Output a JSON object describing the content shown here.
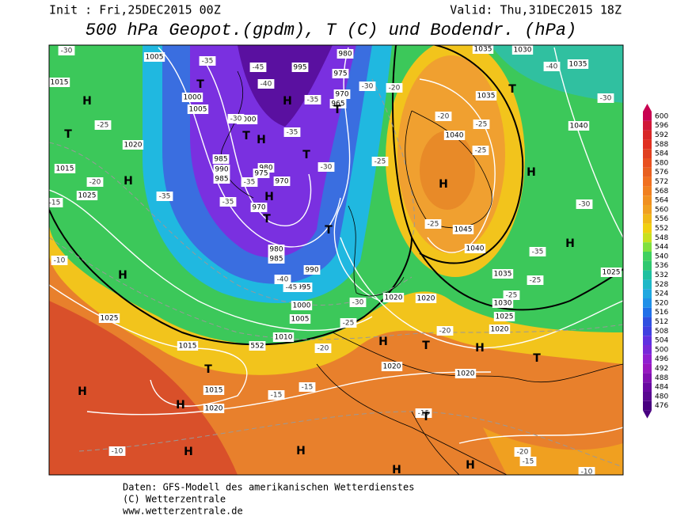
{
  "header": {
    "init": "Init : Fri,25DEC2015 00Z",
    "valid": "Valid: Thu,31DEC2015 18Z",
    "title": "500 hPa Geopot.(gpdm), T (C) und Bodendr. (hPa)"
  },
  "map": {
    "isobar_labels": [
      "1005",
      "1015",
      "1000",
      "1005",
      "1000",
      "1020",
      "1015",
      "985",
      "990",
      "985",
      "980",
      "975",
      "970",
      "970",
      "980",
      "985",
      "990",
      "995",
      "1000",
      "1005",
      "1010",
      "1025",
      "1025",
      "1015",
      "1015",
      "1020",
      "1020",
      "1020",
      "1020",
      "1020",
      "1020",
      "1025",
      "1030",
      "1035",
      "1040",
      "1045",
      "1040",
      "1035",
      "1040",
      "1035",
      "1030",
      "1035",
      "980",
      "975",
      "970",
      "965",
      "995",
      "1025",
      "552"
    ],
    "temperature_labels": [
      "-30",
      "-35",
      "-45",
      "-40",
      "-35",
      "-30",
      "-30",
      "-35",
      "-30",
      "-35",
      "-35",
      "-40",
      "-45",
      "-30",
      "-25",
      "-20",
      "-25",
      "-20",
      "-15",
      "-10",
      "-35",
      "-15",
      "-15",
      "-10",
      "-20",
      "-20",
      "-25",
      "-25",
      "-25",
      "-25",
      "-30",
      "-35",
      "-25",
      "-25",
      "-20",
      "-40",
      "-30",
      "-20",
      "-15",
      "-10",
      "-15"
    ],
    "markers": [
      "H",
      "T",
      "H",
      "T",
      "H",
      "T",
      "H",
      "T",
      "T",
      "H",
      "T",
      "T",
      "H",
      "T",
      "H",
      "H",
      "H",
      "H",
      "H",
      "H",
      "H",
      "T",
      "H",
      "T",
      "T",
      "H",
      "H",
      "T",
      "H"
    ]
  },
  "colorbar": {
    "labels": [
      600,
      596,
      592,
      588,
      584,
      580,
      576,
      572,
      568,
      564,
      560,
      556,
      552,
      548,
      544,
      540,
      536,
      532,
      528,
      524,
      520,
      516,
      512,
      508,
      504,
      500,
      496,
      492,
      488,
      484,
      480,
      476
    ],
    "colors": [
      "#c80050",
      "#d01838",
      "#d82828",
      "#e03020",
      "#e04020",
      "#e85020",
      "#e86020",
      "#f07020",
      "#f08020",
      "#f09020",
      "#f0a020",
      "#f0b818",
      "#f0d010",
      "#c8e020",
      "#80e040",
      "#40d060",
      "#30c870",
      "#20c0a0",
      "#20b8c8",
      "#20a8e0",
      "#2090e8",
      "#2070e8",
      "#3050e0",
      "#4040e0",
      "#6030e0",
      "#7828d8",
      "#9020d0",
      "#9818c0",
      "#8010b0",
      "#6808a0",
      "#580890",
      "#480080"
    ]
  },
  "footer": {
    "source": "Daten: GFS-Modell des amerikanischen Wetterdienstes",
    "copyright": "(C) Wetterzentrale",
    "url": "www.wetterzentrale.de"
  }
}
